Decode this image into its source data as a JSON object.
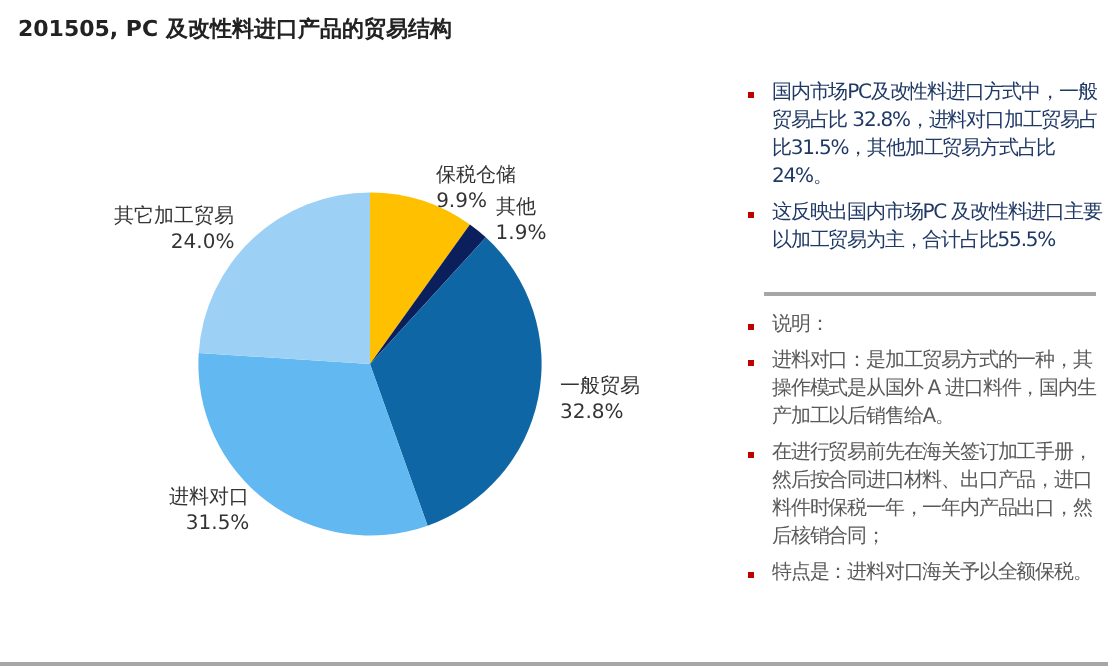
{
  "chart_data": {
    "type": "pie",
    "title": "201505, PC 及改性料进口产品的贸易结构",
    "categories": [
      "保税仓储",
      "其他",
      "一般贸易",
      "进料对口",
      "其它加工贸易"
    ],
    "values": [
      9.9,
      1.9,
      32.8,
      31.5,
      24.0
    ],
    "colors": [
      "#ffc000",
      "#0a1f5c",
      "#0f66a5",
      "#62b8f0",
      "#9dd0f5"
    ],
    "value_labels": [
      "9.9%",
      "1.9%",
      "32.8%",
      "31.5%",
      "24.0%"
    ],
    "legend": false,
    "annotations": [
      "国内市场PC及改性料进口方式中，一般贸易占比 32.8%，进料对口加工贸易占比31.5%，其他加工贸易方式占比24%。",
      "这反映出国内市场PC 及改性料进口主要以加工贸易为主，合计占比55.5%",
      "说明：",
      "进料对口：是加工贸易方式的一种，其操作模式是从国外 A 进口料件，国内生产加工以后销售给A。",
      "在进行贸易前先在海关签订加工手册，然后按合同进口材料、出口产品，进口料件时保税一年，一年内产品出口，然后核销合同；",
      "特点是：进料对口海关予以全额保税。"
    ]
  }
}
